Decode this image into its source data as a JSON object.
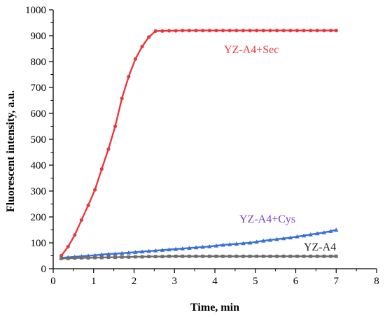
{
  "chart_data": {
    "type": "line",
    "title": "",
    "xlabel": "Time, min",
    "ylabel": "Fluorescent intensity, a.u.",
    "xlim": [
      0,
      8
    ],
    "ylim": [
      0,
      1000
    ],
    "x_ticks": [
      0,
      1,
      2,
      3,
      4,
      5,
      6,
      7,
      8
    ],
    "y_ticks": [
      0,
      100,
      200,
      300,
      400,
      500,
      600,
      700,
      800,
      900,
      1000
    ],
    "grid": false,
    "series": [
      {
        "name": "YZ-A4+Sec",
        "color": "#e8383d",
        "marker": "circle",
        "x": [
          0.2,
          0.367,
          0.533,
          0.7,
          0.867,
          1.033,
          1.2,
          1.367,
          1.533,
          1.7,
          1.867,
          2.033,
          2.2,
          2.367,
          2.533,
          2.7,
          2.867,
          3.033,
          3.2,
          3.367,
          3.533,
          3.7,
          3.867,
          4.033,
          4.2,
          4.367,
          4.533,
          4.7,
          4.867,
          5.033,
          5.2,
          5.367,
          5.533,
          5.7,
          5.867,
          6.033,
          6.2,
          6.367,
          6.533,
          6.7,
          6.867,
          7.0
        ],
        "y": [
          50,
          85,
          130,
          188,
          245,
          305,
          385,
          462,
          550,
          658,
          742,
          810,
          858,
          895,
          918,
          918,
          919,
          919,
          920,
          920,
          920,
          920,
          920,
          920,
          920,
          920,
          920,
          920,
          920,
          920,
          920,
          920,
          920,
          920,
          920,
          920,
          920,
          920,
          920,
          920,
          920,
          920
        ]
      },
      {
        "name": "YZ-A4+Cys",
        "color": "#3a6fd8",
        "marker": "triangle",
        "x": [
          0.2,
          0.367,
          0.533,
          0.7,
          0.867,
          1.033,
          1.2,
          1.367,
          1.533,
          1.7,
          1.867,
          2.033,
          2.2,
          2.367,
          2.533,
          2.7,
          2.867,
          3.033,
          3.2,
          3.367,
          3.533,
          3.7,
          3.867,
          4.033,
          4.2,
          4.367,
          4.533,
          4.7,
          4.867,
          5.033,
          5.2,
          5.367,
          5.533,
          5.7,
          5.867,
          6.033,
          6.2,
          6.367,
          6.533,
          6.7,
          6.867,
          7.0
        ],
        "y": [
          42,
          44,
          46,
          48,
          50,
          52,
          55,
          57,
          58,
          60,
          62,
          64,
          66,
          68,
          70,
          72,
          74,
          76,
          78,
          80,
          82,
          84,
          86,
          89,
          92,
          94,
          96,
          98,
          100,
          104,
          108,
          111,
          114,
          117,
          120,
          124,
          128,
          132,
          136,
          140,
          145,
          150
        ]
      },
      {
        "name": "YZ-A4",
        "color": "#6e6e6e",
        "marker": "square",
        "x": [
          0.2,
          0.367,
          0.533,
          0.7,
          0.867,
          1.033,
          1.2,
          1.367,
          1.533,
          1.7,
          1.867,
          2.033,
          2.2,
          2.367,
          2.533,
          2.7,
          2.867,
          3.033,
          3.2,
          3.367,
          3.533,
          3.7,
          3.867,
          4.033,
          4.2,
          4.367,
          4.533,
          4.7,
          4.867,
          5.033,
          5.2,
          5.367,
          5.533,
          5.7,
          5.867,
          6.033,
          6.2,
          6.367,
          6.533,
          6.7,
          6.867,
          7.0
        ],
        "y": [
          40,
          40,
          41,
          42,
          42,
          43,
          43,
          44,
          44,
          45,
          45,
          46,
          46,
          47,
          47,
          47,
          48,
          48,
          48,
          48,
          48,
          48,
          48,
          48,
          48,
          48,
          48,
          48,
          48,
          48,
          48,
          48,
          48,
          48,
          48,
          48,
          48,
          48,
          48,
          48,
          48,
          48
        ]
      }
    ],
    "annotations": [
      {
        "text": "YZ-A4+Sec",
        "color": "#e8383d"
      },
      {
        "text": "YZ-A4+Cys",
        "color": "#7a3fd0"
      },
      {
        "text": "YZ-A4",
        "color": "#222222"
      }
    ]
  }
}
